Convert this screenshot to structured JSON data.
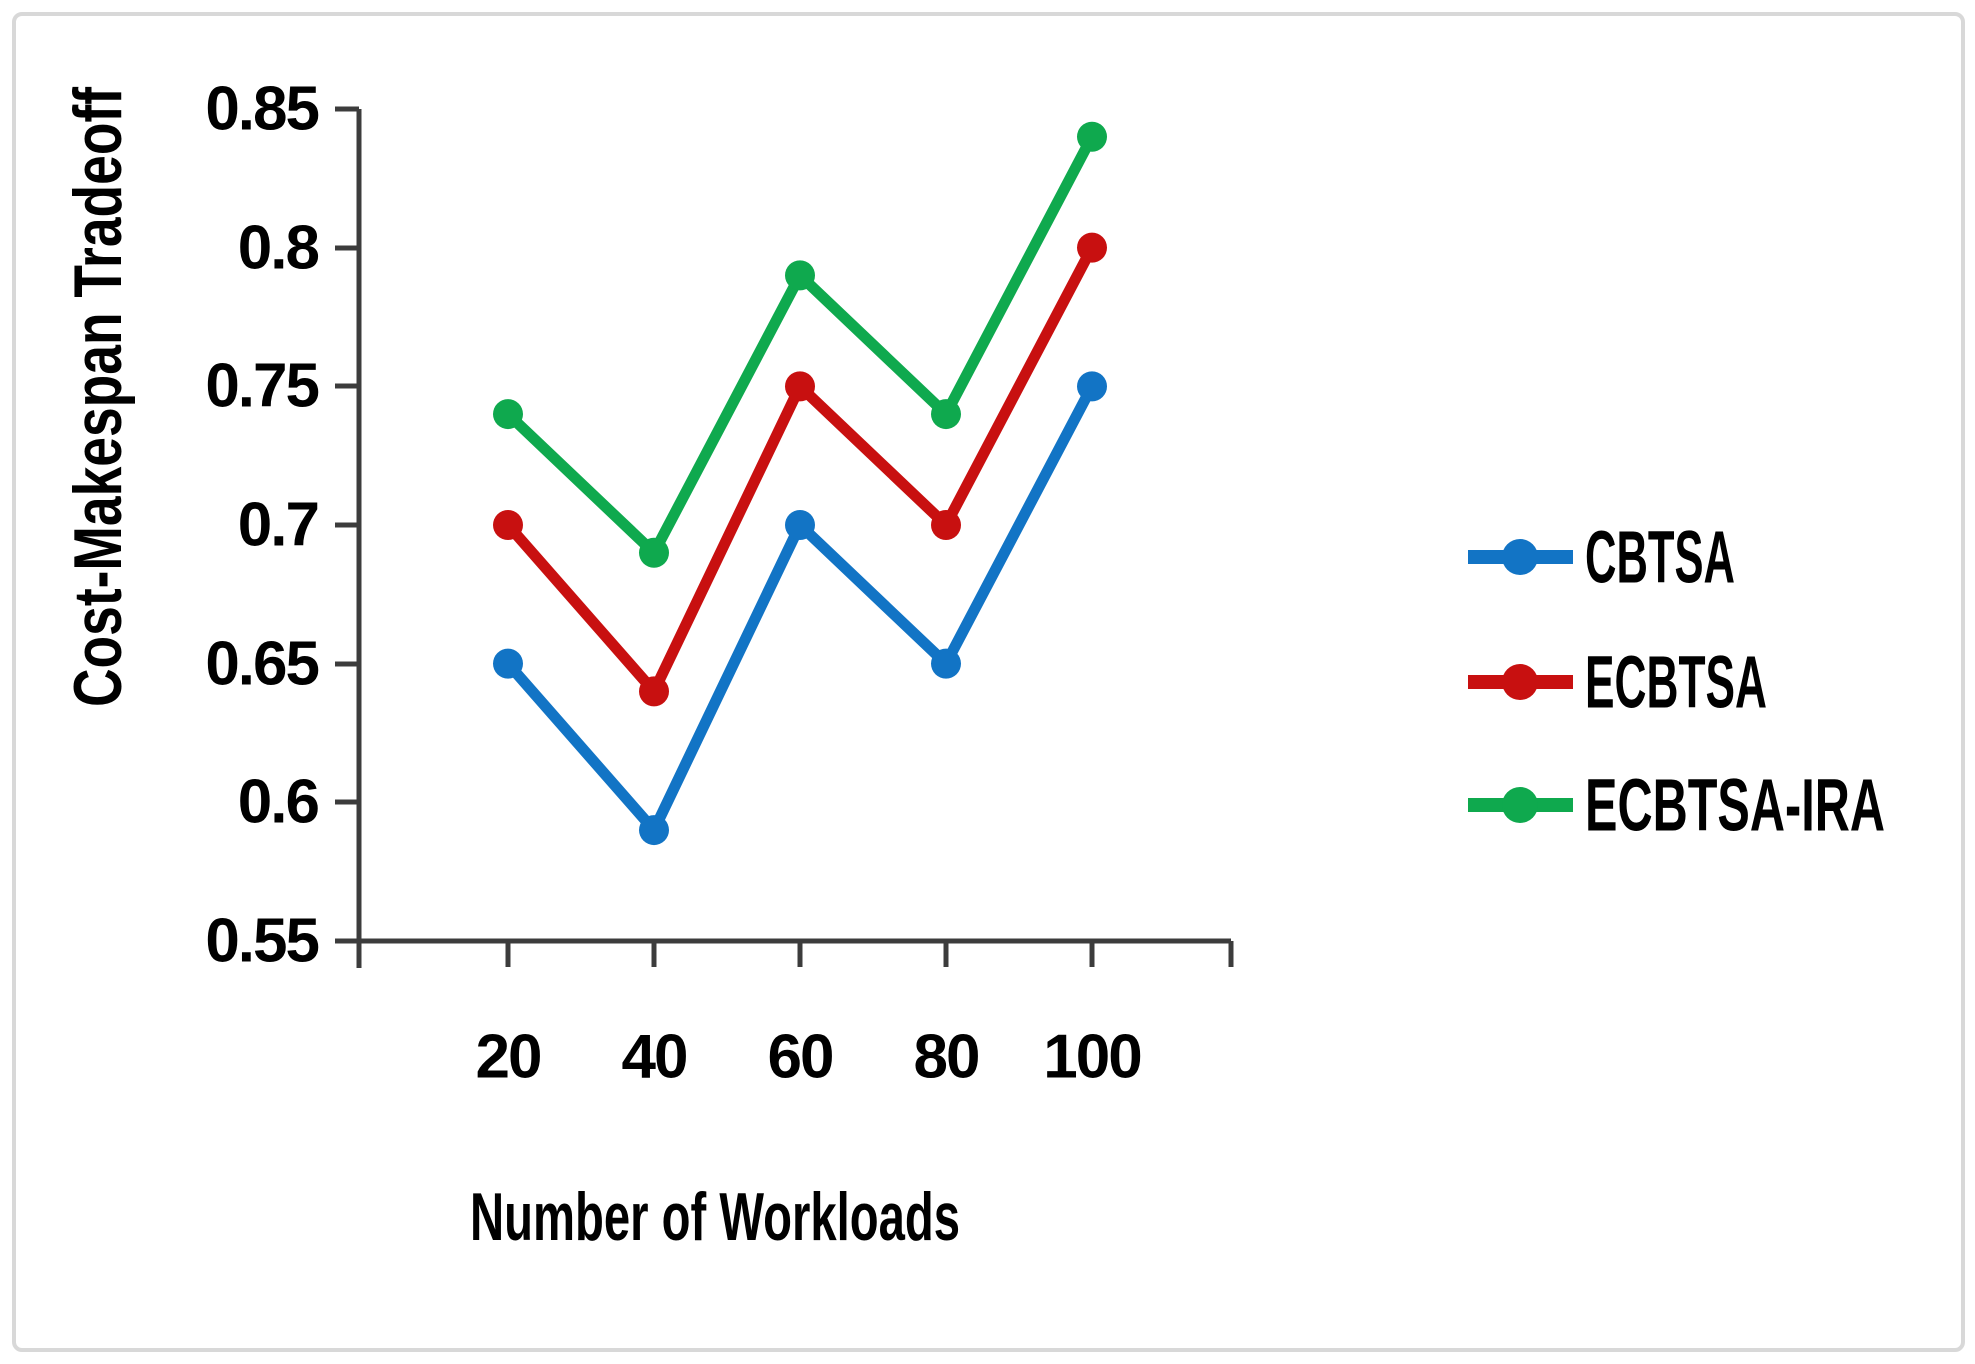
{
  "figure": {
    "background": "#ffffff",
    "border_color": "#d8d8d8",
    "axis_color": "#3c3c3c"
  },
  "chart_data": {
    "type": "line",
    "title": "",
    "xlabel": "Number of Workloads",
    "ylabel": "Cost-Makespan Tradeoff",
    "x": [
      20,
      40,
      60,
      80,
      100
    ],
    "xtick_labels": [
      "20",
      "40",
      "60",
      "80",
      "100"
    ],
    "ytick_labels": [
      "0.85",
      "0.8",
      "0.75",
      "0.7",
      "0.65",
      "0.6",
      "0.55"
    ],
    "yticks": [
      0.85,
      0.8,
      0.75,
      0.7,
      0.65,
      0.6,
      0.55
    ],
    "ylim": [
      0.55,
      0.85
    ],
    "ytick_step": 0.05,
    "grid": false,
    "legend_position": "right-center",
    "marker": "circle",
    "series": [
      {
        "name": "CBTSA",
        "color": "#1274c5",
        "values": [
          0.65,
          0.59,
          0.7,
          0.65,
          0.75
        ]
      },
      {
        "name": "ECBTSA",
        "color": "#c81010",
        "values": [
          0.7,
          0.64,
          0.75,
          0.7,
          0.8
        ]
      },
      {
        "name": "ECBTSA-IRA",
        "color": "#0fa94e",
        "values": [
          0.74,
          0.69,
          0.79,
          0.74,
          0.84
        ]
      }
    ]
  }
}
